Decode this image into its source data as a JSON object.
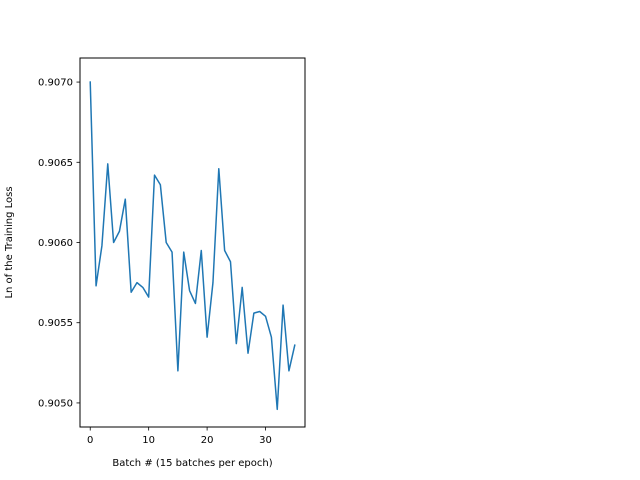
{
  "chart_data": {
    "type": "line",
    "title": "",
    "xlabel": "Batch # (15 batches per epoch)",
    "ylabel": "Ln of the Training Loss",
    "xlim": [
      -1.75,
      36.75
    ],
    "ylim": [
      0.90485,
      0.90715
    ],
    "xticks": [
      0,
      10,
      20,
      30
    ],
    "xtick_labels": [
      "0",
      "10",
      "20",
      "30"
    ],
    "yticks": [
      0.905,
      0.9055,
      0.906,
      0.9065,
      0.907
    ],
    "ytick_labels": [
      "0.9050",
      "0.9055",
      "0.9060",
      "0.9065",
      "0.9070"
    ],
    "grid": false,
    "series": [
      {
        "color": "#1f77b4",
        "x": [
          0,
          1,
          2,
          3,
          4,
          5,
          6,
          7,
          8,
          9,
          10,
          11,
          12,
          13,
          14,
          15,
          16,
          17,
          18,
          19,
          20,
          21,
          22,
          23,
          24,
          25,
          26,
          27,
          28,
          29,
          30,
          31,
          32,
          33,
          34,
          35
        ],
        "y": [
          0.907,
          0.90573,
          0.90598,
          0.90649,
          0.906,
          0.90607,
          0.90627,
          0.90569,
          0.90575,
          0.90572,
          0.90566,
          0.90642,
          0.90636,
          0.906,
          0.90594,
          0.9052,
          0.90594,
          0.9057,
          0.90562,
          0.90595,
          0.90541,
          0.90575,
          0.90646,
          0.90595,
          0.90588,
          0.90537,
          0.90572,
          0.90531,
          0.90556,
          0.90557,
          0.90554,
          0.90541,
          0.90496,
          0.90561,
          0.9052,
          0.90536
        ]
      }
    ]
  }
}
